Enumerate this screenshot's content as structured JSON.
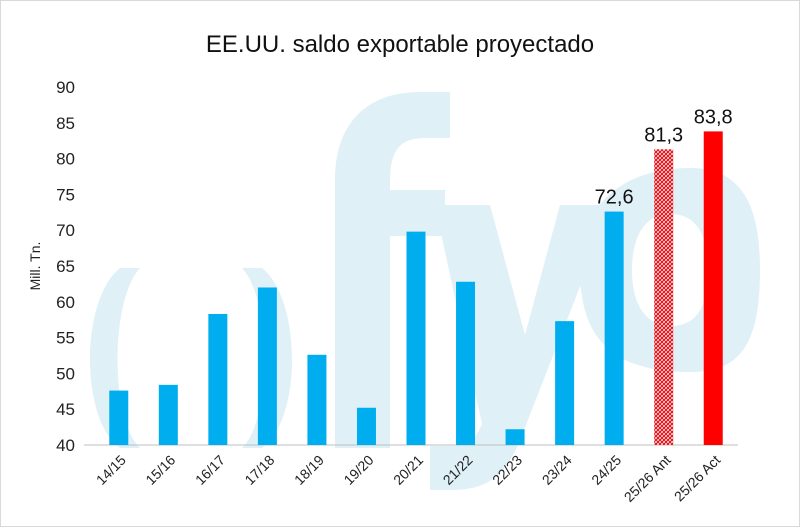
{
  "chart_data": {
    "type": "bar",
    "title": "EE.UU. saldo exportable proyectado",
    "ylabel": "Mill. Tn.",
    "xlabel": "",
    "ylim": [
      40,
      90
    ],
    "yticks": [
      40,
      45,
      50,
      55,
      60,
      65,
      70,
      75,
      80,
      85,
      90
    ],
    "categories": [
      "14/15",
      "15/16",
      "16/17",
      "17/18",
      "18/19",
      "19/20",
      "20/21",
      "21/22",
      "22/23",
      "23/24",
      "24/25",
      "25/26 Ant",
      "25/26 Act"
    ],
    "values": [
      47.6,
      48.4,
      58.3,
      62.0,
      52.6,
      45.2,
      69.8,
      62.8,
      42.2,
      57.3,
      72.6,
      81.3,
      83.8
    ],
    "data_labels": [
      null,
      null,
      null,
      null,
      null,
      null,
      null,
      null,
      null,
      null,
      "72,6",
      "81,3",
      "83,8"
    ],
    "bar_colors": [
      "#00aeef",
      "#00aeef",
      "#00aeef",
      "#00aeef",
      "#00aeef",
      "#00aeef",
      "#00aeef",
      "#00aeef",
      "#00aeef",
      "#00aeef",
      "#00aeef",
      "#e8141b",
      "#ff0000"
    ],
    "bar_patterns": [
      "solid",
      "solid",
      "solid",
      "solid",
      "solid",
      "solid",
      "solid",
      "solid",
      "solid",
      "solid",
      "solid",
      "hatched",
      "solid"
    ],
    "grid": false
  }
}
